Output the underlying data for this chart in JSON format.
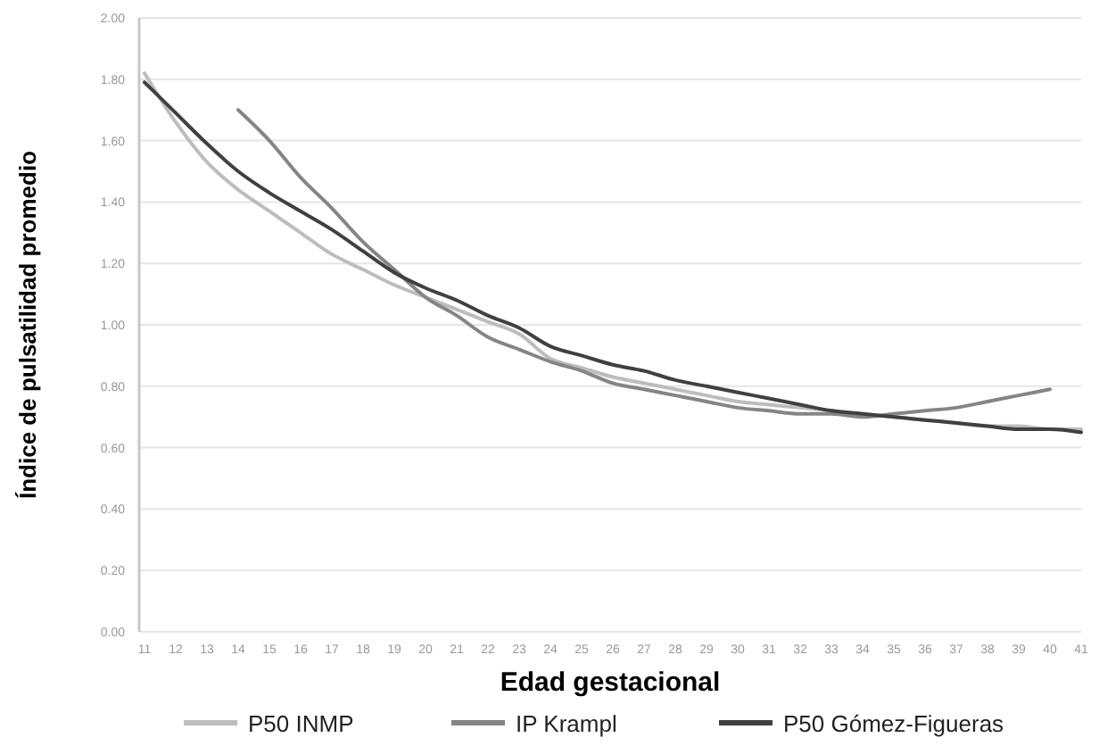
{
  "chart_data": {
    "type": "line",
    "xlabel": "Edad gestacional",
    "ylabel": "Índice de pulsatilidad promedio",
    "categories": [
      "11",
      "12",
      "13",
      "14",
      "15",
      "16",
      "17",
      "18",
      "19",
      "20",
      "21",
      "22",
      "23",
      "24",
      "25",
      "26",
      "27",
      "28",
      "29",
      "30",
      "31",
      "32",
      "33",
      "34",
      "35",
      "36",
      "37",
      "38",
      "39",
      "40",
      "41"
    ],
    "ylim": [
      0,
      2
    ],
    "yticks": [
      {
        "value": 0,
        "label": "0.00"
      },
      {
        "value": 0.2,
        "label": "0.20"
      },
      {
        "value": 0.4,
        "label": "0.40"
      },
      {
        "value": 0.6,
        "label": "0.60"
      },
      {
        "value": 0.8,
        "label": "0.80"
      },
      {
        "value": 1,
        "label": "1.00"
      },
      {
        "value": 1.2,
        "label": "1.20"
      },
      {
        "value": 1.4,
        "label": "1.40"
      },
      {
        "value": 1.6,
        "label": "1.60"
      },
      {
        "value": 1.8,
        "label": "1.80"
      },
      {
        "value": 2,
        "label": "2.00"
      }
    ],
    "grid": "y",
    "legend": "bottom",
    "marker": "none",
    "line_style": "solid",
    "series": [
      {
        "name": "P50 INMP",
        "color": "#bdbdbd",
        "values": [
          1.82,
          1.66,
          1.53,
          1.44,
          1.37,
          1.3,
          1.23,
          1.18,
          1.13,
          1.09,
          1.05,
          1.01,
          0.97,
          0.89,
          0.86,
          0.83,
          0.81,
          0.79,
          0.77,
          0.75,
          0.74,
          0.73,
          0.72,
          0.71,
          0.7,
          0.69,
          0.68,
          0.67,
          0.67,
          0.66,
          0.66
        ]
      },
      {
        "name": "IP Krampl",
        "color": "#858585",
        "values": [
          null,
          null,
          null,
          1.7,
          1.6,
          1.48,
          1.38,
          1.27,
          1.18,
          1.09,
          1.03,
          0.96,
          0.92,
          0.88,
          0.85,
          0.81,
          0.79,
          0.77,
          0.75,
          0.73,
          0.72,
          0.71,
          0.71,
          0.7,
          0.71,
          0.72,
          0.73,
          0.75,
          0.77,
          0.79,
          null
        ]
      },
      {
        "name": "P50 Gómez-Figueras",
        "color": "#404040",
        "values": [
          1.79,
          1.69,
          1.59,
          1.5,
          1.43,
          1.37,
          1.31,
          1.24,
          1.17,
          1.12,
          1.08,
          1.03,
          0.99,
          0.93,
          0.9,
          0.87,
          0.85,
          0.82,
          0.8,
          0.78,
          0.76,
          0.74,
          0.72,
          0.71,
          0.7,
          0.69,
          0.68,
          0.67,
          0.66,
          0.66,
          0.65
        ]
      }
    ]
  }
}
